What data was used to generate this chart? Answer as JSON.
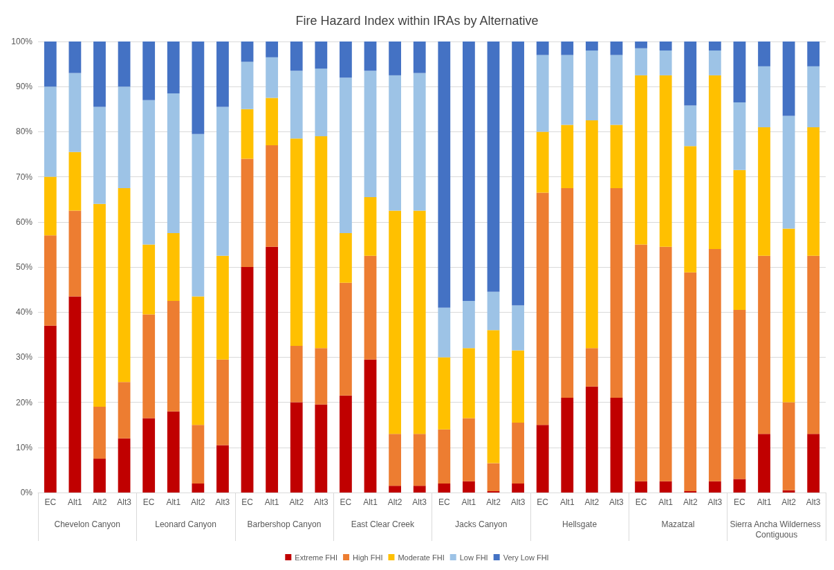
{
  "chart_data": {
    "type": "bar",
    "stacked": true,
    "title": "Fire Hazard Index within IRAs by Alternative",
    "categories": [
      "EC",
      "Alt1",
      "Alt2",
      "Alt3",
      "EC",
      "Alt1",
      "Alt2",
      "Alt3",
      "EC",
      "Alt1",
      "Alt2",
      "Alt3",
      "EC",
      "Alt1",
      "Alt2",
      "Alt3",
      "EC",
      "Alt1",
      "Alt2",
      "Alt3",
      "EC",
      "Alt1",
      "Alt2",
      "Alt3",
      "EC",
      "Alt1",
      "Alt2",
      "Alt3",
      "EC",
      "Alt1",
      "Alt2",
      "Alt3"
    ],
    "annotations": [
      "Chevelon Canyon",
      "Leonard Canyon",
      "Barbershop Canyon",
      "East Clear Creek",
      "Jacks Canyon",
      "Hellsgate",
      "Mazatzal",
      "Sierra Ancha Wilderness Contiguous"
    ],
    "series": [
      {
        "name": "Extreme FHI",
        "color": "#c00000",
        "values": [
          37,
          43.5,
          7.5,
          12,
          16.5,
          18,
          2,
          10.5,
          50,
          54.5,
          20,
          19.5,
          21.5,
          29.5,
          1.5,
          1.5,
          2,
          2.5,
          0.3,
          2,
          15,
          21,
          23.5,
          21,
          2.5,
          2.5,
          0.3,
          2.5,
          3,
          13,
          0.5,
          13
        ]
      },
      {
        "name": "High FHI",
        "color": "#ed7d31",
        "values": [
          20,
          19,
          11.5,
          12.5,
          23,
          24.5,
          13,
          19,
          24,
          22.5,
          12.5,
          12.5,
          25,
          23,
          11.5,
          11.5,
          12,
          14,
          6.2,
          13.5,
          51.5,
          46.5,
          8.5,
          46.5,
          52.5,
          52,
          48.5,
          51.5,
          37.5,
          39.5,
          19.5,
          39.5
        ]
      },
      {
        "name": "Moderate FHI",
        "color": "#ffc000",
        "values": [
          13,
          13,
          45,
          43,
          15.5,
          15,
          28.5,
          23,
          11,
          10.5,
          46,
          47,
          11,
          13,
          49.5,
          49.5,
          16,
          15.5,
          29.5,
          16,
          13.5,
          14,
          50.5,
          14,
          37.5,
          38,
          28,
          38.5,
          31,
          28.5,
          38.5,
          28.5
        ]
      },
      {
        "name": "Low FHI",
        "color": "#9dc3e6",
        "values": [
          20,
          17.5,
          21.5,
          22.5,
          32,
          31,
          36,
          33,
          10.5,
          9,
          15,
          15,
          34.5,
          28,
          30,
          30.5,
          11,
          10.5,
          8.5,
          10,
          17,
          15.5,
          15.5,
          15.5,
          6,
          5.5,
          9,
          5.5,
          15,
          13.5,
          25,
          13.5
        ]
      },
      {
        "name": "Very Low FHI",
        "color": "#4472c4",
        "values": [
          10,
          7,
          14.5,
          10,
          13,
          11.5,
          20.5,
          14.5,
          4.5,
          3.5,
          6.5,
          6,
          8,
          6.5,
          7.5,
          7,
          59,
          57.5,
          55.5,
          58.5,
          3,
          3,
          2,
          3,
          1.5,
          2,
          14.2,
          2,
          13.5,
          5.5,
          16.5,
          5.5
        ]
      }
    ],
    "ylim": [
      0,
      100
    ],
    "yticks": [
      {
        "value": 0,
        "label": "0%"
      },
      {
        "value": 10,
        "label": "10%"
      },
      {
        "value": 20,
        "label": "20%"
      },
      {
        "value": 30,
        "label": "30%"
      },
      {
        "value": 40,
        "label": "40%"
      },
      {
        "value": 50,
        "label": "50%"
      },
      {
        "value": 60,
        "label": "60%"
      },
      {
        "value": 70,
        "label": "70%"
      },
      {
        "value": 80,
        "label": "80%"
      },
      {
        "value": 90,
        "label": "90%"
      },
      {
        "value": 100,
        "label": "100%"
      }
    ],
    "grid": "y",
    "legend": "bottom"
  }
}
